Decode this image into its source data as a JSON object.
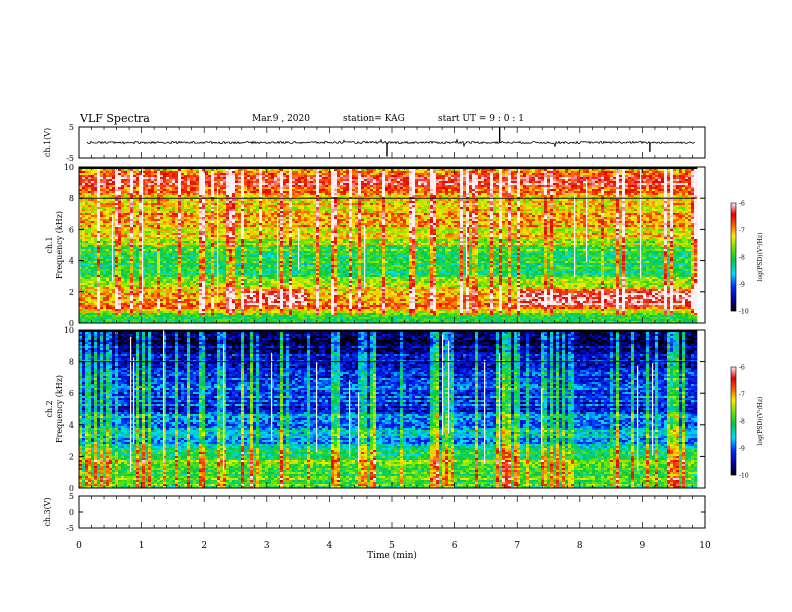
{
  "header": {
    "title": "VLF Spectra",
    "date": "Mar.9  , 2020",
    "station": "station= KAG",
    "start": "start  UT =   9 : 0  : 1"
  },
  "chart_data": {
    "type": "heatmap",
    "time_axis": {
      "label": "Time (min)",
      "range": [
        0,
        10
      ],
      "ticks": [
        "0",
        "1",
        "2",
        "3",
        "4",
        "5",
        "6",
        "7",
        "8",
        "9",
        "10"
      ]
    },
    "panels": [
      {
        "kind": "waveform",
        "ylabel": "ch.1(V)",
        "ylim": [
          -5,
          5
        ],
        "yticks": [
          "5",
          "-5"
        ],
        "trace": "noisy-near-zero"
      },
      {
        "kind": "spectrogram",
        "ylabel_top": "ch.1",
        "ylabel": "Frequency (kHz)",
        "ylim": [
          0,
          10
        ],
        "yticks": [
          "0",
          "2",
          "4",
          "6",
          "8",
          "10"
        ],
        "colorbar_label": "log(PSD)(V²/Hz)",
        "colorbar_ticks": [
          "-6",
          "-7",
          "-8",
          "-9",
          "-10"
        ],
        "clim": [
          -10,
          -6
        ],
        "profile_khz": [
          [
            0,
            -8.3
          ],
          [
            0.5,
            -7.8
          ],
          [
            1.0,
            -6.9
          ],
          [
            1.5,
            -6.7
          ],
          [
            2.0,
            -6.9
          ],
          [
            2.5,
            -7.4
          ],
          [
            3.0,
            -7.9
          ],
          [
            3.5,
            -8.1
          ],
          [
            4.0,
            -8.0
          ],
          [
            4.5,
            -8.3
          ],
          [
            5.0,
            -7.6
          ],
          [
            6.0,
            -7.2
          ],
          [
            7.0,
            -7.0
          ],
          [
            8.0,
            -7.2
          ],
          [
            8.5,
            -6.8
          ],
          [
            9.0,
            -6.5
          ],
          [
            9.5,
            -6.7
          ],
          [
            10.0,
            -7.0
          ]
        ],
        "enhancements": [
          [
            2.6,
            3.6,
            1.2,
            2.2
          ],
          [
            7.0,
            9.8,
            1.2,
            2.2
          ]
        ]
      },
      {
        "kind": "spectrogram",
        "ylabel_top": "ch.2",
        "ylabel": "Frequency (kHz)",
        "ylim": [
          0,
          10
        ],
        "yticks": [
          "0",
          "2",
          "4",
          "6",
          "8",
          "10"
        ],
        "colorbar_label": "log(PSD)(V²/Hz)",
        "colorbar_ticks": [
          "-6",
          "-7",
          "-8",
          "-9",
          "-10"
        ],
        "clim": [
          -10,
          -6
        ],
        "profile_khz": [
          [
            0,
            -8.0
          ],
          [
            0.5,
            -7.8
          ],
          [
            1.0,
            -7.9
          ],
          [
            1.5,
            -7.6
          ],
          [
            2.0,
            -7.9
          ],
          [
            2.5,
            -8.3
          ],
          [
            3.0,
            -8.8
          ],
          [
            3.5,
            -8.5
          ],
          [
            4.0,
            -9.0
          ],
          [
            4.5,
            -8.8
          ],
          [
            5.0,
            -9.2
          ],
          [
            6.0,
            -9.1
          ],
          [
            7.0,
            -9.3
          ],
          [
            8.0,
            -9.4
          ],
          [
            9.0,
            -9.6
          ],
          [
            10.0,
            -9.8
          ]
        ],
        "enhancements": []
      },
      {
        "kind": "waveform",
        "ylabel": "ch.3(V)",
        "ylim": [
          -5,
          5
        ],
        "yticks": [
          "5",
          "0",
          "-5"
        ],
        "trace": "none"
      }
    ]
  }
}
